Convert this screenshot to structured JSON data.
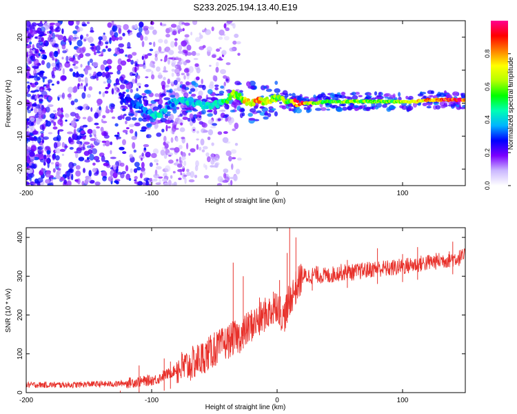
{
  "title": "S233.2025.194.13.40.E19",
  "chart_data": [
    {
      "type": "heatmap",
      "title": "S233.2025.194.13.40.E19",
      "xlabel": "Height of straight line (km)",
      "ylabel": "Frequency (Hz)",
      "xlim": [
        -200,
        150
      ],
      "ylim": [
        -25,
        25
      ],
      "x_ticks": [
        -200,
        -100,
        0,
        100
      ],
      "y_ticks": [
        -20,
        -10,
        0,
        10,
        20
      ],
      "x_tick_labels": [
        "-200",
        "-100",
        "0",
        "100"
      ],
      "y_tick_labels": [
        "-20",
        "-10",
        "0",
        "10",
        "20"
      ],
      "colorbar": {
        "label": "Normalized spectral amplitude",
        "range": [
          0,
          1
        ],
        "ticks": [
          0,
          0.2,
          0.4,
          0.6,
          0.8
        ],
        "tick_labels": [
          "0.0",
          "0.2",
          "0.4",
          "0.6",
          "0.8"
        ],
        "colormap": "rainbow",
        "colors": [
          "#ffffff",
          "#cbb8ff",
          "#7b00ff",
          "#0000ff",
          "#00b4ff",
          "#00ffb4",
          "#00ff00",
          "#b4ff00",
          "#ffff00",
          "#ff8000",
          "#ff0000",
          "#ff0090"
        ]
      },
      "ridge": {
        "x": [
          -125,
          -115,
          -105,
          -95,
          -85,
          -75,
          -65,
          -55,
          -45,
          -40,
          -35,
          -30,
          -25,
          -20,
          -15,
          -10,
          -5,
          0,
          5,
          10,
          15,
          20,
          30,
          40,
          50,
          60,
          70,
          80,
          90,
          100,
          110,
          120,
          130,
          140,
          150
        ],
        "y": [
          2,
          0,
          -2,
          -4,
          0,
          1,
          0,
          -1,
          0,
          1,
          3,
          2,
          0.5,
          0,
          1,
          0.5,
          1,
          1.5,
          1,
          0.5,
          0,
          0,
          0,
          0.5,
          0.5,
          0.5,
          0.5,
          0.5,
          0.5,
          0.5,
          0.5,
          1,
          1,
          1,
          1
        ],
        "amplitude": [
          0.25,
          0.3,
          0.35,
          0.45,
          0.35,
          0.45,
          0.4,
          0.45,
          0.45,
          0.55,
          0.65,
          0.55,
          0.8,
          0.75,
          0.85,
          0.7,
          0.7,
          0.6,
          0.65,
          0.55,
          0.95,
          0.9,
          0.6,
          0.55,
          0.6,
          0.65,
          0.6,
          0.6,
          0.6,
          0.65,
          0.7,
          0.85,
          0.9,
          0.95,
          0.95
        ]
      },
      "grid": false
    },
    {
      "type": "line",
      "xlabel": "Height of straight line (km)",
      "ylabel": "SNR (10 * v/v)",
      "xlim": [
        -200,
        150
      ],
      "ylim": [
        0,
        425
      ],
      "x_ticks": [
        -200,
        -100,
        0,
        100
      ],
      "y_ticks": [
        0,
        100,
        200,
        300,
        400
      ],
      "x_tick_labels": [
        "-200",
        "-100",
        "0",
        "100"
      ],
      "y_tick_labels": [
        "0",
        "100",
        "200",
        "300",
        "400"
      ],
      "series": [
        {
          "color": "#e8312b",
          "x": [
            -200,
            -190,
            -180,
            -170,
            -160,
            -150,
            -140,
            -130,
            -120,
            -110,
            -100,
            -95,
            -90,
            -85,
            -80,
            -75,
            -70,
            -65,
            -60,
            -55,
            -50,
            -45,
            -40,
            -35,
            -30,
            -25,
            -20,
            -15,
            -10,
            -5,
            0,
            5,
            10,
            15,
            20,
            25,
            30,
            40,
            50,
            60,
            70,
            80,
            90,
            100,
            110,
            120,
            130,
            140,
            150
          ],
          "values": [
            20,
            20,
            20,
            20,
            20,
            22,
            22,
            22,
            25,
            28,
            32,
            35,
            45,
            50,
            60,
            65,
            70,
            80,
            90,
            100,
            110,
            120,
            130,
            140,
            145,
            160,
            175,
            185,
            200,
            210,
            230,
            190,
            240,
            270,
            300,
            300,
            305,
            300,
            310,
            310,
            315,
            320,
            320,
            325,
            330,
            335,
            340,
            345,
            350
          ],
          "spikes": [
            [
              -125,
              5
            ],
            [
              -110,
              70
            ],
            [
              -90,
              88
            ],
            [
              -85,
              80
            ],
            [
              -60,
              120
            ],
            [
              -50,
              155
            ],
            [
              -35,
              335
            ],
            [
              -27,
              300
            ],
            [
              -14,
              245
            ],
            [
              -3,
              260
            ],
            [
              2,
              290
            ],
            [
              8,
              360
            ],
            [
              10,
              425
            ],
            [
              15,
              400
            ],
            [
              28,
              305
            ],
            [
              56,
              342
            ],
            [
              80,
              372
            ],
            [
              100,
              357
            ],
            [
              112,
              375
            ],
            [
              140,
              389
            ]
          ]
        }
      ],
      "grid": false
    }
  ]
}
